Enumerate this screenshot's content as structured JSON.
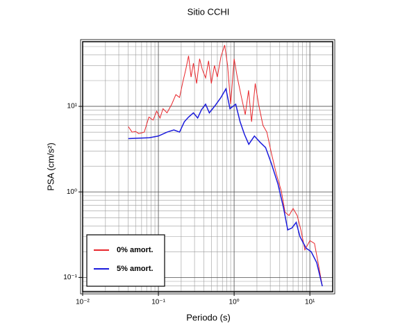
{
  "chart_data": {
    "type": "line",
    "title": "Sitio CCHI",
    "x_label": "Periodo (s)",
    "y_label": "PSA (cm/s²)",
    "x_log": true,
    "y_log": true,
    "grid": true,
    "minor_grid": true,
    "legend": "lower left",
    "xlim": [
      0.01,
      20
    ],
    "ylim": [
      0.068,
      57
    ],
    "xticks": [
      {
        "value": 0.01,
        "label": "10⁻²"
      },
      {
        "value": 0.1,
        "label": "10⁻¹"
      },
      {
        "value": 1,
        "label": "10⁰"
      },
      {
        "value": 10,
        "label": "10¹"
      }
    ],
    "yticks": [
      {
        "value": 0.1,
        "label": "10⁻¹"
      },
      {
        "value": 1,
        "label": "10⁰"
      },
      {
        "value": 10,
        "label": "10¹"
      }
    ],
    "series": [
      {
        "name": "0% amort.",
        "color": "#e8262b",
        "x": [
          0.04,
          0.045,
          0.05,
          0.055,
          0.065,
          0.075,
          0.085,
          0.095,
          0.105,
          0.115,
          0.13,
          0.15,
          0.17,
          0.19,
          0.21,
          0.23,
          0.25,
          0.27,
          0.29,
          0.32,
          0.35,
          0.38,
          0.42,
          0.46,
          0.5,
          0.55,
          0.6,
          0.67,
          0.75,
          0.82,
          0.9,
          1.0,
          1.1,
          1.25,
          1.4,
          1.55,
          1.7,
          1.9,
          2.1,
          2.4,
          2.7,
          3.1,
          3.6,
          4.2,
          4.7,
          5.3,
          6,
          6.8,
          7.6,
          8.6,
          10,
          11.5,
          13,
          14.6
        ],
        "values": [
          5.8,
          5.0,
          5.1,
          4.8,
          5.0,
          7.5,
          6.9,
          8.8,
          7.3,
          9.4,
          8.4,
          10.6,
          13.7,
          12.7,
          19.2,
          27,
          39,
          22,
          32,
          18.5,
          36,
          27,
          21.5,
          34,
          18.5,
          30,
          22,
          38,
          52,
          30,
          10.6,
          36,
          22,
          12.7,
          8.0,
          15.4,
          6.6,
          18.5,
          10.6,
          6.0,
          5.0,
          2.85,
          1.63,
          1.02,
          0.58,
          0.53,
          0.64,
          0.53,
          0.36,
          0.21,
          0.27,
          0.25,
          0.14,
          0.079
        ]
      },
      {
        "name": "5% amort.",
        "color": "#1a1adc",
        "x": [
          0.04,
          0.076,
          0.1,
          0.13,
          0.16,
          0.19,
          0.22,
          0.25,
          0.29,
          0.33,
          0.37,
          0.42,
          0.47,
          0.56,
          0.67,
          0.78,
          0.88,
          1.05,
          1.2,
          1.37,
          1.56,
          1.85,
          2.2,
          2.6,
          3.1,
          3.8,
          4.5,
          5.1,
          5.8,
          6.6,
          7.4,
          8.9,
          10.4,
          12.3,
          14.6
        ],
        "values": [
          4.2,
          4.3,
          4.5,
          5.0,
          5.3,
          5.0,
          6.6,
          7.5,
          8.4,
          7.3,
          9.1,
          10.6,
          8.4,
          10.2,
          12.7,
          16,
          9.4,
          10.6,
          6.6,
          4.7,
          3.6,
          4.5,
          3.8,
          3.3,
          2.15,
          1.23,
          0.64,
          0.36,
          0.38,
          0.44,
          0.3,
          0.22,
          0.2,
          0.149,
          0.079
        ]
      }
    ]
  }
}
